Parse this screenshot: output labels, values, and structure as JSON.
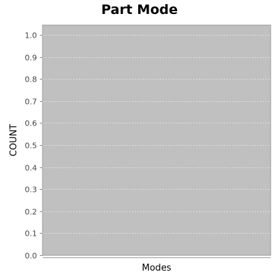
{
  "chart_data": {
    "type": "bar",
    "title": "Part Mode",
    "xlabel": "Modes",
    "ylabel": "COUNT",
    "categories": [],
    "values": [],
    "ylim": [
      0.0,
      1.0
    ],
    "yticks": [
      "0.0",
      "0.1",
      "0.2",
      "0.3",
      "0.4",
      "0.5",
      "0.6",
      "0.7",
      "0.8",
      "0.9",
      "1.0"
    ],
    "grid": true,
    "legend": "none",
    "plot_background": "#c0c0c0",
    "grid_color": "#e0e0e0"
  }
}
